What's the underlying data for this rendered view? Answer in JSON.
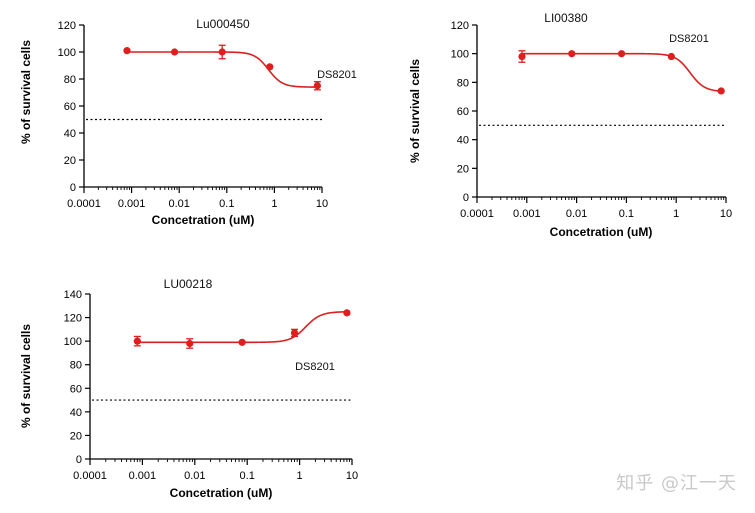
{
  "chart_data": [
    {
      "type": "scatter",
      "title": "Lu000450",
      "annotation": "DS8201",
      "xlabel": "Concetration (uM)",
      "ylabel": "% of survival cells",
      "xscale": "log",
      "xlim": [
        0.0001,
        10
      ],
      "ylim": [
        0,
        120
      ],
      "xticks": [
        "0.0001",
        "0.001",
        "0.01",
        "0.1",
        "1",
        "10"
      ],
      "yticks": [
        "0",
        "20",
        "40",
        "60",
        "80",
        "100",
        "120"
      ],
      "reference_line": 50,
      "fit": {
        "top": 100,
        "bottom": 74,
        "ec50": 0.75,
        "hill": 3
      },
      "x": [
        0.0008,
        0.008,
        0.08,
        0.8,
        8
      ],
      "y": [
        101,
        100,
        100,
        89,
        75
      ],
      "err": [
        0,
        0,
        5,
        0,
        3
      ]
    },
    {
      "type": "scatter",
      "title": "LI00380",
      "annotation": "DS8201",
      "xlabel": "Concetration (uM)",
      "ylabel": "% of survival cells",
      "xscale": "log",
      "xlim": [
        0.0001,
        10
      ],
      "ylim": [
        0,
        120
      ],
      "xticks": [
        "0.0001",
        "0.001",
        "0.01",
        "0.1",
        "1",
        "10"
      ],
      "yticks": [
        "0",
        "20",
        "40",
        "60",
        "80",
        "100",
        "120"
      ],
      "reference_line": 50,
      "fit": {
        "top": 100,
        "bottom": 73.5,
        "ec50": 1.9,
        "hill": 3
      },
      "x": [
        0.0008,
        0.008,
        0.08,
        0.8,
        8
      ],
      "y": [
        98,
        100,
        100,
        98,
        74
      ],
      "err": [
        4,
        0,
        0,
        0,
        0
      ]
    },
    {
      "type": "scatter",
      "title": "LU00218",
      "annotation": "DS8201",
      "xlabel": "Concetration (uM)",
      "ylabel": "% of survival cells",
      "xscale": "log",
      "xlim": [
        0.0001,
        10
      ],
      "ylim": [
        0,
        140
      ],
      "xticks": [
        "0.0001",
        "0.001",
        "0.01",
        "0.1",
        "1",
        "10"
      ],
      "yticks": [
        "0",
        "20",
        "40",
        "60",
        "80",
        "100",
        "120",
        "140"
      ],
      "reference_line": 50,
      "fit": {
        "top": 99,
        "bottom": 125,
        "ec50": 1.3,
        "hill": 3
      },
      "x": [
        0.0008,
        0.008,
        0.08,
        0.8,
        8
      ],
      "y": [
        100,
        98,
        99,
        107,
        124
      ],
      "err": [
        4,
        4,
        0,
        3,
        0
      ]
    }
  ],
  "watermark": "知乎 @江一天",
  "colors": {
    "series": "#dd1f1f",
    "axis": "#000000",
    "reference": "#000000"
  }
}
